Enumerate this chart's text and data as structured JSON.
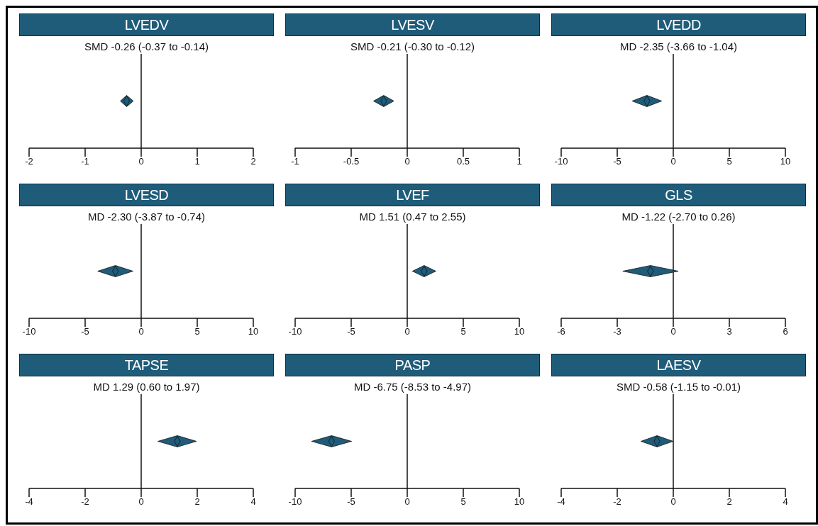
{
  "chart_data": [
    {
      "type": "scatter",
      "title": "LVEDV",
      "orientation": "horizontal",
      "categories": [
        null
      ],
      "values": [
        -0.26
      ],
      "errors": [
        [
          -0.37,
          -0.14
        ]
      ],
      "color": "#1f5c7a",
      "marker": "diamond",
      "xlim": [
        -2,
        2
      ],
      "xticks": [
        -2,
        -1,
        0,
        1,
        2
      ],
      "ref_lines": [
        {
          "axis": "x",
          "value": 0
        }
      ],
      "annotations": [
        "SMD -0.26 (-0.37 to -0.14)"
      ],
      "tick_labels": "x"
    },
    {
      "type": "scatter",
      "title": "LVESV",
      "orientation": "horizontal",
      "categories": [
        null
      ],
      "values": [
        -0.21
      ],
      "errors": [
        [
          -0.3,
          -0.12
        ]
      ],
      "color": "#1f5c7a",
      "marker": "diamond",
      "xlim": [
        -1,
        1
      ],
      "xticks": [
        -1,
        -0.5,
        0,
        0.5,
        1
      ],
      "ref_lines": [
        {
          "axis": "x",
          "value": 0
        }
      ],
      "annotations": [
        "SMD -0.21 (-0.30 to -0.12)"
      ],
      "tick_labels": "x"
    },
    {
      "type": "scatter",
      "title": "LVEDD",
      "orientation": "horizontal",
      "categories": [
        null
      ],
      "values": [
        -2.35
      ],
      "errors": [
        [
          -3.66,
          -1.04
        ]
      ],
      "color": "#1f5c7a",
      "marker": "diamond",
      "xlim": [
        -10,
        10
      ],
      "xticks": [
        -10,
        -5,
        0,
        5,
        10
      ],
      "ref_lines": [
        {
          "axis": "x",
          "value": 0
        }
      ],
      "annotations": [
        "MD -2.35 (-3.66 to -1.04)"
      ],
      "tick_labels": "x"
    },
    {
      "type": "scatter",
      "title": "LVESD",
      "orientation": "horizontal",
      "categories": [
        null
      ],
      "values": [
        -2.3
      ],
      "errors": [
        [
          -3.87,
          -0.74
        ]
      ],
      "color": "#1f5c7a",
      "marker": "diamond",
      "xlim": [
        -10,
        10
      ],
      "xticks": [
        -10,
        -5,
        0,
        5,
        10
      ],
      "ref_lines": [
        {
          "axis": "x",
          "value": 0
        }
      ],
      "annotations": [
        "MD -2.30 (-3.87 to -0.74)"
      ],
      "tick_labels": "x"
    },
    {
      "type": "scatter",
      "title": "LVEF",
      "orientation": "horizontal",
      "categories": [
        null
      ],
      "values": [
        1.51
      ],
      "errors": [
        [
          0.47,
          2.55
        ]
      ],
      "color": "#1f5c7a",
      "marker": "diamond",
      "xlim": [
        -10,
        10
      ],
      "xticks": [
        -10,
        -5,
        0,
        5,
        10
      ],
      "ref_lines": [
        {
          "axis": "x",
          "value": 0
        }
      ],
      "annotations": [
        "MD 1.51 (0.47 to 2.55)"
      ],
      "tick_labels": "x"
    },
    {
      "type": "scatter",
      "title": "GLS",
      "orientation": "horizontal",
      "categories": [
        null
      ],
      "values": [
        -1.22
      ],
      "errors": [
        [
          -2.7,
          0.26
        ]
      ],
      "color": "#1f5c7a",
      "marker": "diamond",
      "xlim": [
        -6,
        6
      ],
      "xticks": [
        -6,
        -3,
        0,
        3,
        6
      ],
      "ref_lines": [
        {
          "axis": "x",
          "value": 0
        }
      ],
      "annotations": [
        "MD -1.22 (-2.70 to 0.26)"
      ],
      "tick_labels": "x"
    },
    {
      "type": "scatter",
      "title": "TAPSE",
      "orientation": "horizontal",
      "categories": [
        null
      ],
      "values": [
        1.29
      ],
      "errors": [
        [
          0.6,
          1.97
        ]
      ],
      "color": "#1f5c7a",
      "marker": "diamond",
      "xlim": [
        -4,
        4
      ],
      "xticks": [
        -4,
        -2,
        0,
        2,
        4
      ],
      "ref_lines": [
        {
          "axis": "x",
          "value": 0
        }
      ],
      "annotations": [
        "MD 1.29 (0.60 to 1.97)"
      ],
      "tick_labels": "x"
    },
    {
      "type": "scatter",
      "title": "PASP",
      "orientation": "horizontal",
      "categories": [
        null
      ],
      "values": [
        -6.75
      ],
      "errors": [
        [
          -8.53,
          -4.97
        ]
      ],
      "color": "#1f5c7a",
      "marker": "diamond",
      "xlim": [
        -10,
        10
      ],
      "xticks": [
        -10,
        -5,
        0,
        5,
        10
      ],
      "ref_lines": [
        {
          "axis": "x",
          "value": 0
        }
      ],
      "annotations": [
        "MD -6.75 (-8.53 to -4.97)"
      ],
      "tick_labels": "x"
    },
    {
      "type": "scatter",
      "title": "LAESV",
      "orientation": "horizontal",
      "categories": [
        null
      ],
      "values": [
        -0.58
      ],
      "errors": [
        [
          -1.15,
          -0.01
        ]
      ],
      "color": "#1f5c7a",
      "marker": "diamond",
      "xlim": [
        -4,
        4
      ],
      "xticks": [
        -4,
        -2,
        0,
        2,
        4
      ],
      "ref_lines": [
        {
          "axis": "x",
          "value": 0
        }
      ],
      "annotations": [
        "SMD -0.58 (-1.15 to -0.01)"
      ],
      "tick_labels": "x"
    }
  ]
}
